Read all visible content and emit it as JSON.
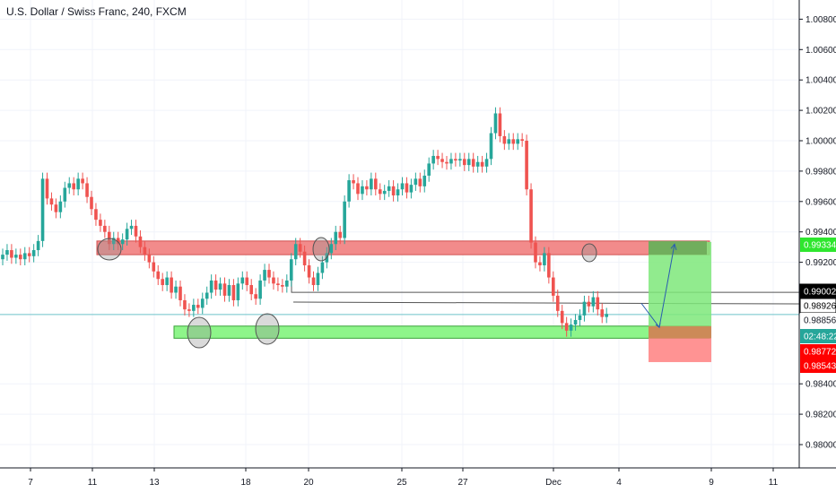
{
  "title": "U.S. Dollar / Swiss Franc, 240, FXCM",
  "colors": {
    "up": "#26a69a",
    "down": "#ef5350",
    "resistance_zone": "#f28b8b",
    "support_zone": "#8ef58a",
    "target_zone": "#7ee87a",
    "stop_zone": "#ff8080",
    "grid": "#f0f3fa",
    "price_line": "#6ec3c9"
  },
  "price_scale": {
    "ticks": [
      "1.00800",
      "1.00600",
      "1.00400",
      "1.00200",
      "1.00000",
      "0.99800",
      "0.99600",
      "0.99400",
      "0.99200",
      "0.98400",
      "0.98200",
      "0.98000"
    ],
    "badges": [
      {
        "label": "0.99334",
        "kind": "target"
      },
      {
        "label": "0.99002",
        "kind": "hline"
      },
      {
        "label": "0.98926",
        "kind": "hline"
      },
      {
        "label": "0.98856",
        "kind": "last"
      },
      {
        "label": "02:48:22",
        "kind": "countdown"
      },
      {
        "label": "0.98772",
        "kind": "entry"
      },
      {
        "label": "0.98543",
        "kind": "stop"
      }
    ]
  },
  "time_scale": {
    "ticks": [
      "7",
      "11",
      "13",
      "18",
      "20",
      "25",
      "27",
      "Dec",
      "4",
      "9",
      "11"
    ]
  },
  "chart_data": {
    "type": "candlestick",
    "title": "U.S. Dollar / Swiss Franc, 240, FXCM",
    "ylim": [
      0.9785,
      1.0092
    ],
    "y_ticks": [
      1.008,
      1.006,
      1.004,
      1.002,
      1.0,
      0.998,
      0.996,
      0.994,
      0.992,
      0.984,
      0.982,
      0.98
    ],
    "x_labels": [
      "7",
      "11",
      "13",
      "18",
      "20",
      "25",
      "27",
      "Dec",
      "4",
      "9",
      "11"
    ],
    "close_series": [
      0.9925,
      0.9928,
      0.9923,
      0.9925,
      0.9922,
      0.9926,
      0.9924,
      0.9928,
      0.9934,
      0.9975,
      0.9962,
      0.9958,
      0.9953,
      0.996,
      0.9969,
      0.9972,
      0.9968,
      0.9975,
      0.9972,
      0.9963,
      0.9955,
      0.9948,
      0.9944,
      0.994,
      0.9932,
      0.9936,
      0.9932,
      0.9935,
      0.9942,
      0.9944,
      0.9937,
      0.993,
      0.9925,
      0.992,
      0.9914,
      0.9909,
      0.9905,
      0.991,
      0.99,
      0.9904,
      0.9895,
      0.9889,
      0.9888,
      0.9892,
      0.989,
      0.9896,
      0.99,
      0.9908,
      0.9902,
      0.9906,
      0.9898,
      0.9905,
      0.9895,
      0.9906,
      0.991,
      0.9905,
      0.9899,
      0.9896,
      0.9908,
      0.9915,
      0.991,
      0.9906,
      0.9905,
      0.9904,
      0.9908,
      0.9922,
      0.9932,
      0.9927,
      0.9918,
      0.991,
      0.9905,
      0.9913,
      0.992,
      0.9926,
      0.9932,
      0.994,
      0.9936,
      0.996,
      0.9974,
      0.9972,
      0.9965,
      0.997,
      0.9968,
      0.9975,
      0.9968,
      0.9965,
      0.9967,
      0.997,
      0.9964,
      0.9968,
      0.9972,
      0.9966,
      0.9971,
      0.9975,
      0.997,
      0.9977,
      0.9985,
      0.999,
      0.9988,
      0.9986,
      0.9985,
      0.9988,
      0.9987,
      0.9988,
      0.9984,
      0.9988,
      0.9983,
      0.9986,
      0.9983,
      0.9988,
      1.0005,
      1.0018,
      1.0003,
      0.9998,
      1.0001,
      0.9998,
      1.0001,
      1.0,
      0.9968,
      0.9933,
      0.992,
      0.9918,
      0.9926,
      0.991,
      0.9898,
      0.9888,
      0.988,
      0.9875,
      0.9879,
      0.9882,
      0.9885,
      0.9894,
      0.9891,
      0.9897,
      0.9889,
      0.9884,
      0.9886
    ],
    "annotations": {
      "resistance_zone": [
        0.9925,
        0.9934
      ],
      "support_zone": [
        0.987,
        0.9878
      ],
      "target": 0.99334,
      "entry": 0.98772,
      "stop": 0.98543,
      "horizontal_lines": [
        0.99002,
        0.98926
      ],
      "last_price": 0.98856
    }
  }
}
